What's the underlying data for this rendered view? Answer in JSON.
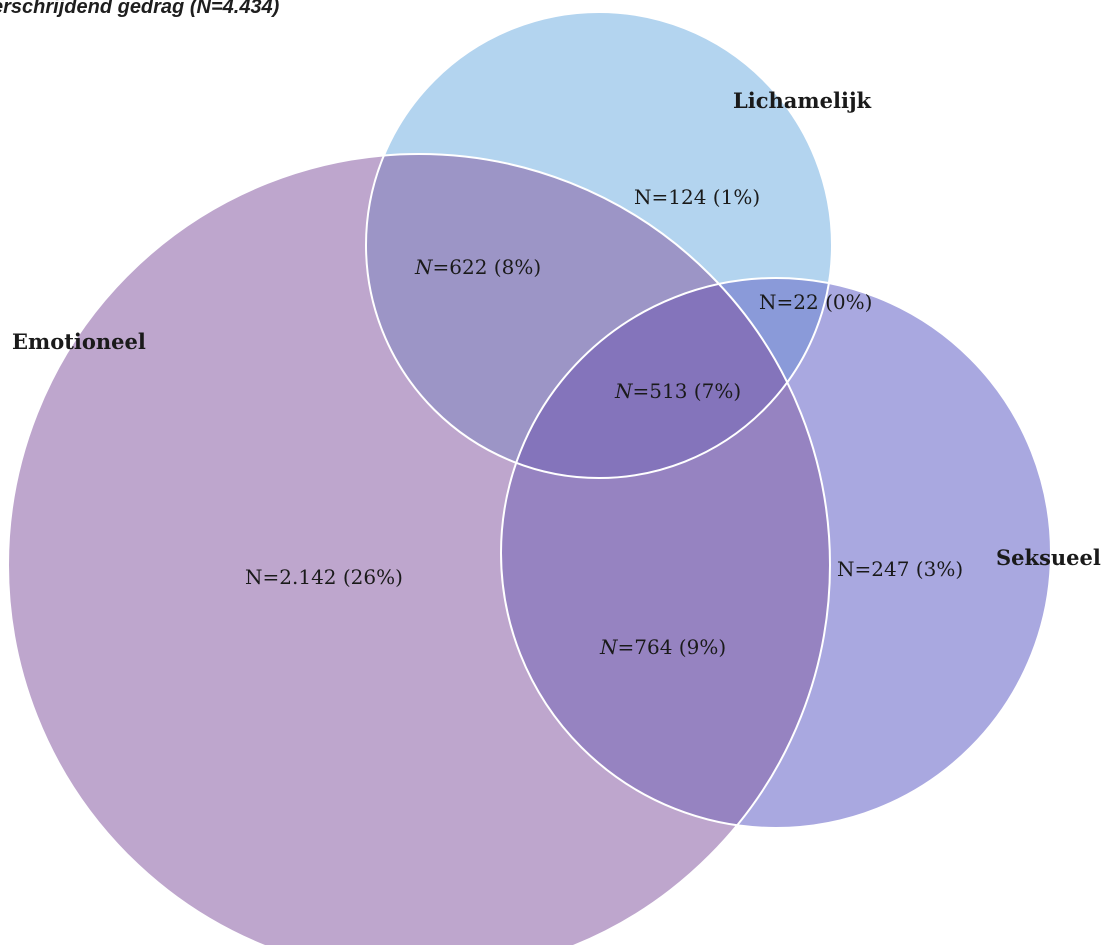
{
  "title": {
    "prefix": "erschrijdend gedrag (",
    "n_symbol": "N",
    "suffix": "=4.434)"
  },
  "sets": {
    "lichamelijk": {
      "label": "Lichamelijk",
      "color": "#b3d4ef"
    },
    "emotioneel": {
      "label": "Emotioneel",
      "color": "#bea6cd"
    },
    "seksueel": {
      "label": "Seksueel",
      "color": "#a9a8e0"
    }
  },
  "regions": {
    "lichamelijk_only": {
      "n_symbol": "N",
      "value": "=124",
      "percent": "(1%)",
      "italic": false
    },
    "emotioneel_lichamelijk": {
      "n_symbol": "N",
      "value": "=622",
      "percent": "(8%)",
      "italic": true
    },
    "lichamelijk_seksueel": {
      "n_symbol": "N",
      "value": "=22",
      "percent": "(0%)",
      "italic": false
    },
    "all_three": {
      "n_symbol": "N",
      "value": "=513",
      "percent": "(7%)",
      "italic": true
    },
    "emotioneel_only": {
      "n_symbol": "N",
      "value": "=2.142",
      "percent": "(26%)",
      "italic": false
    },
    "emotioneel_seksueel": {
      "n_symbol": "N",
      "value": "=764",
      "percent": "(9%)",
      "italic": true
    },
    "seksueel_only": {
      "n_symbol": "N",
      "value": "=247",
      "percent": "(3%)",
      "italic": false
    }
  },
  "overlap_colors": {
    "emotioneel_lichamelijk": "#9c95c6",
    "lichamelijk_seksueel": "#8a9ad9",
    "emotioneel_seksueel": "#9683c1",
    "all_three": "#8474bb"
  }
}
